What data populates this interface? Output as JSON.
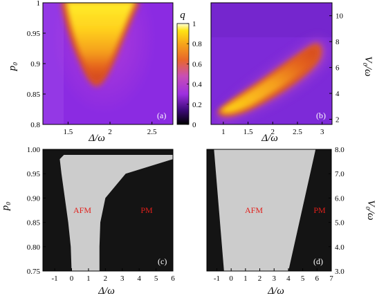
{
  "chart_data": [
    {
      "type": "heatmap",
      "panel_label": "(a)",
      "xlabel": "Δ/ω",
      "ylabel": "p₀",
      "xlim": [
        1.2,
        2.75
      ],
      "ylim": [
        0.8,
        1.0
      ],
      "xticks": [
        "1.5",
        "2",
        "2.5"
      ],
      "yticks": [
        "0.8",
        "0.85",
        "0.9",
        "0.95",
        "1"
      ],
      "colorbar": {
        "label": "q",
        "ticks": [
          "0",
          "0.2",
          "0.4",
          "0.6",
          "0.8",
          "1"
        ],
        "range": [
          0,
          1
        ],
        "colormap": [
          "#000000",
          "#3c0a78",
          "#9d2fe0",
          "#c94fb4",
          "#e8672a",
          "#f7a51a",
          "#ffe414",
          "#ffffd8"
        ]
      },
      "feature": {
        "description_values": {
          "peak_center_x": 1.8,
          "tip_y": 0.865,
          "width_at_top": [
            1.45,
            2.3
          ]
        }
      }
    },
    {
      "type": "heatmap",
      "panel_label": "(b)",
      "xlabel": "Δ/ω",
      "ylabel": "V₀/ω",
      "xlim": [
        0.75,
        3.2
      ],
      "ylim": [
        1.6,
        11.0
      ],
      "xticks": [
        "1",
        "1.5",
        "2",
        "2.5",
        "3"
      ],
      "yticks": [
        "2",
        "4",
        "6",
        "8",
        "10"
      ],
      "feature": {
        "ridge_start": [
          0.95,
          2.4
        ],
        "ridge_end": [
          2.9,
          7.2
        ]
      }
    },
    {
      "type": "heatmap",
      "panel_label": "(c)",
      "xlabel": "Δ/ω",
      "ylabel": "p₀",
      "xlim": [
        -1.7,
        6.0
      ],
      "ylim": [
        0.75,
        1.0
      ],
      "xticks": [
        "-1",
        "0",
        "1",
        "2",
        "3",
        "4",
        "5",
        "6"
      ],
      "yticks": [
        "0.75",
        "0.80",
        "0.85",
        "0.90",
        "0.95",
        "1.00"
      ],
      "regions": [
        "AFM",
        "PM"
      ],
      "boundary_left": [
        [
          0.98,
          -0.7
        ],
        [
          0.95,
          -0.6
        ],
        [
          0.9,
          -0.4
        ],
        [
          0.85,
          -0.2
        ],
        [
          0.8,
          -0.05
        ],
        [
          0.75,
          0.0
        ]
      ],
      "boundary_right": [
        [
          0.98,
          6.0
        ],
        [
          0.95,
          3.2
        ],
        [
          0.9,
          2.0
        ],
        [
          0.85,
          1.7
        ],
        [
          0.8,
          1.65
        ],
        [
          0.75,
          1.65
        ]
      ]
    },
    {
      "type": "heatmap",
      "panel_label": "(d)",
      "xlabel": "Δ/ω",
      "ylabel": "V₀/ω",
      "xlim": [
        -1.7,
        7.0
      ],
      "ylim": [
        3.0,
        8.0
      ],
      "xticks": [
        "-1",
        "0",
        "1",
        "2",
        "3",
        "4",
        "5",
        "6",
        "7"
      ],
      "yticks": [
        "3.0",
        "4.0",
        "5.0",
        "6.0",
        "7.0",
        "8.0"
      ],
      "regions": [
        "AFM",
        "PM"
      ],
      "boundary_left": [
        [
          8.0,
          -1.2
        ],
        [
          3.0,
          -0.5
        ]
      ],
      "boundary_right": [
        [
          8.0,
          5.9
        ],
        [
          3.0,
          4.0
        ]
      ]
    }
  ],
  "colors": {
    "afm": "#cccccc",
    "pm": "#141414",
    "region_text": "#e0201b"
  }
}
